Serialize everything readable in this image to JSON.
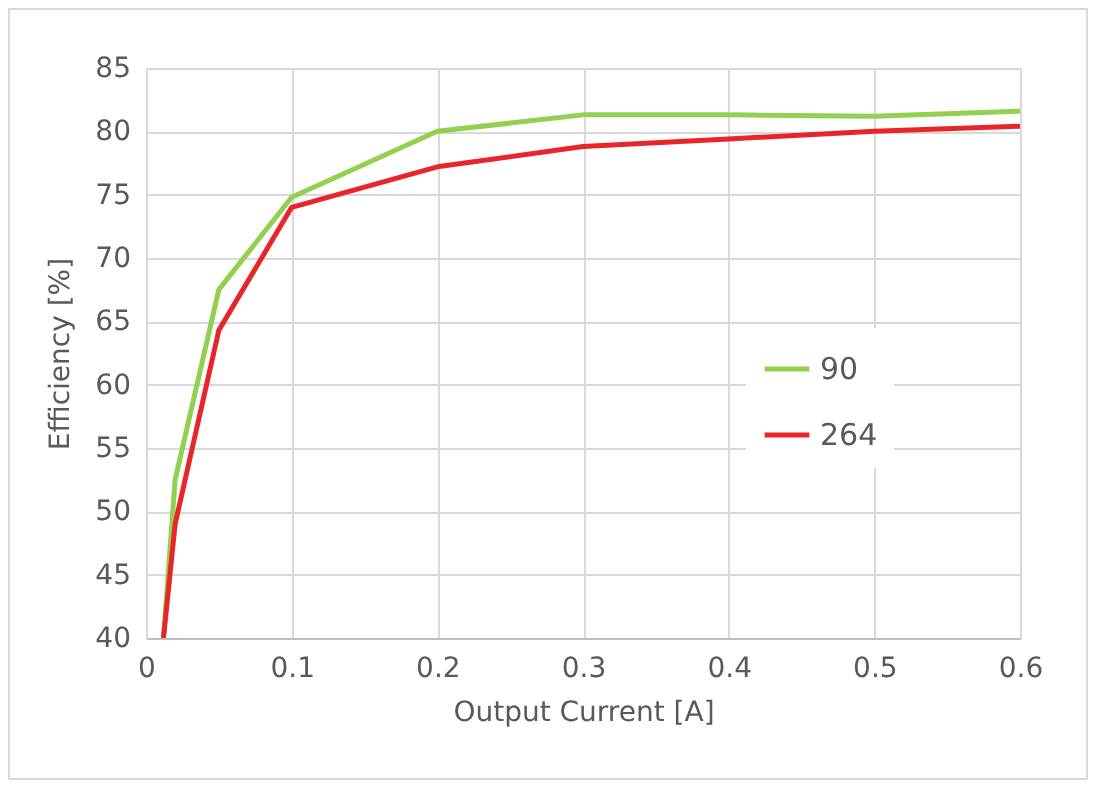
{
  "chart_data": {
    "type": "line",
    "xlabel": "Output Current [A]",
    "ylabel": "Efficiency [%]",
    "xlim": [
      0,
      0.6
    ],
    "xticks": [
      0,
      0.1,
      0.2,
      0.3,
      0.4,
      0.5,
      0.6
    ],
    "ylim": [
      40,
      85
    ],
    "yticks": [
      40,
      45,
      50,
      55,
      60,
      65,
      70,
      75,
      80,
      85
    ],
    "grid": true,
    "legend": "right",
    "x": [
      0.012,
      0.02,
      0.05,
      0.1,
      0.2,
      0.3,
      0.4,
      0.5,
      0.6
    ],
    "series": [
      {
        "name": "90",
        "color": "#92d050",
        "values": [
          40,
          52.5,
          67.5,
          74.8,
          80,
          81.3,
          81.3,
          81.2,
          81.6
        ]
      },
      {
        "name": "264",
        "color": "#e8262a",
        "values": [
          40,
          49,
          64.3,
          74,
          77.2,
          78.8,
          79.4,
          80,
          80.4
        ]
      }
    ]
  }
}
